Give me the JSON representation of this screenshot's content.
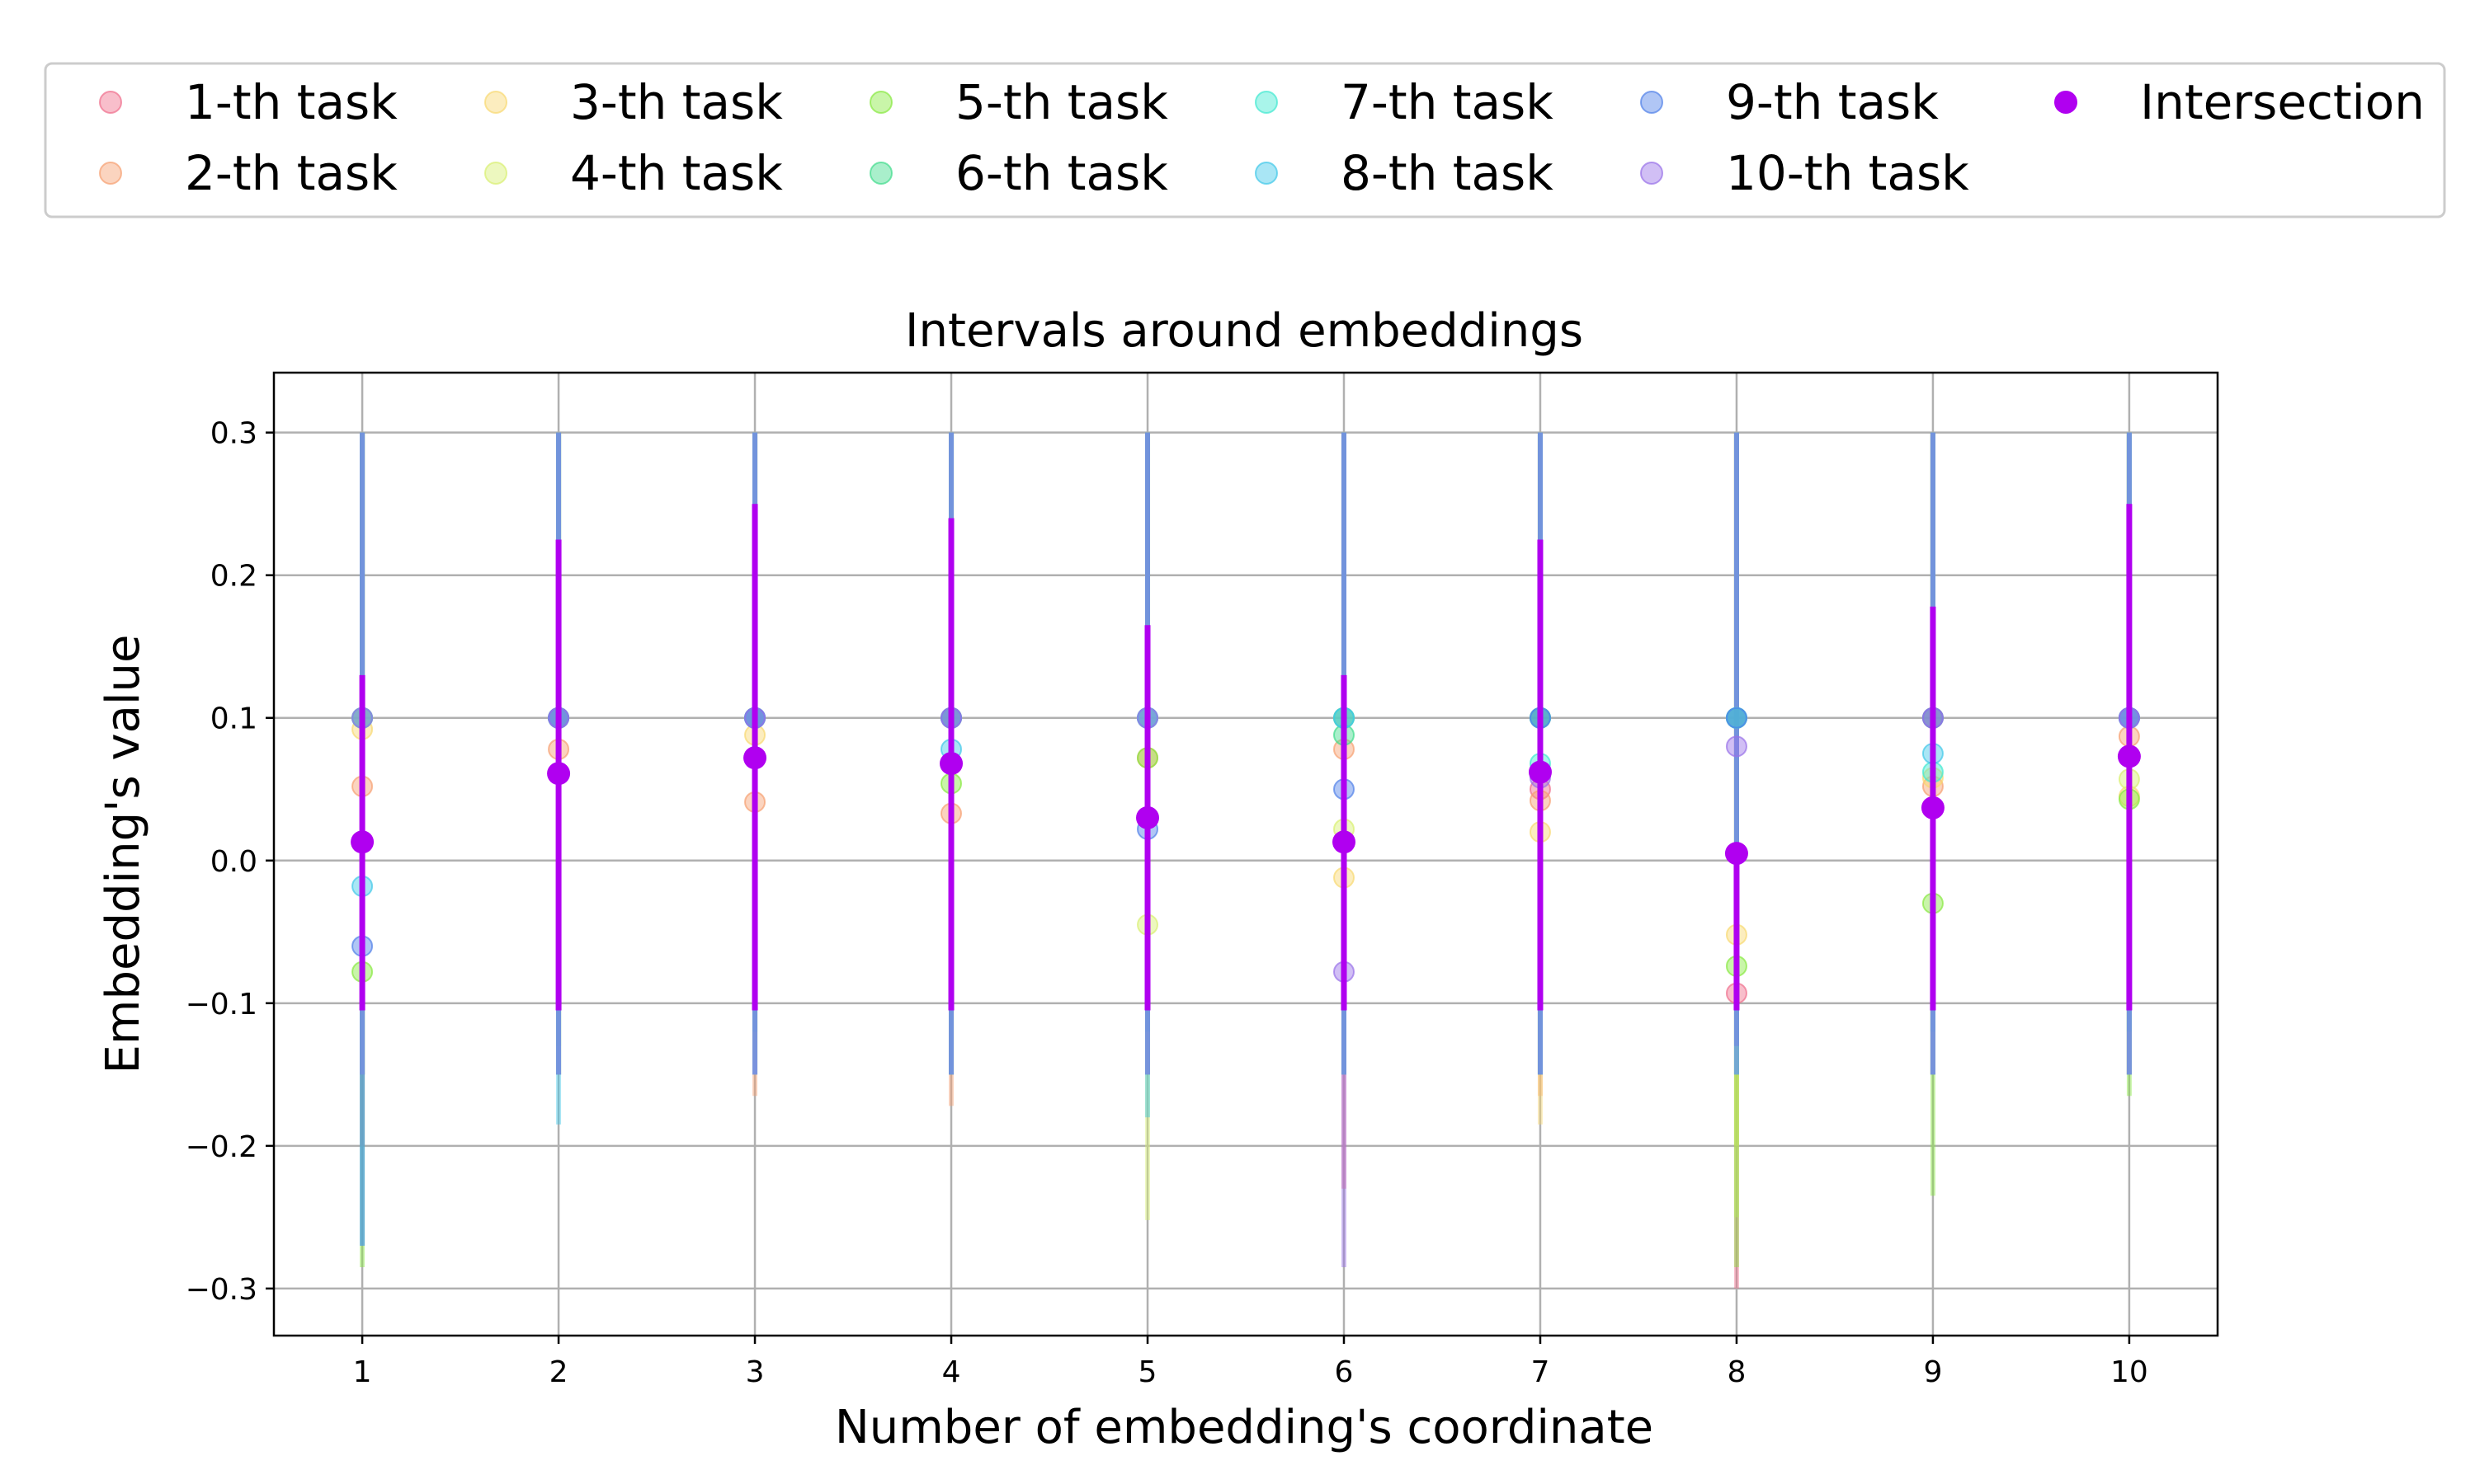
{
  "chart_data": {
    "type": "scatter",
    "title": "Intervals around embeddings",
    "xlabel": "Number of embedding's coordinate",
    "ylabel": "Embedding's value",
    "x": [
      1,
      2,
      3,
      4,
      5,
      6,
      7,
      8,
      9,
      10
    ],
    "x_tick_labels": [
      "1",
      "2",
      "3",
      "4",
      "5",
      "6",
      "7",
      "8",
      "9",
      "10"
    ],
    "xlim": [
      0.55,
      10.45
    ],
    "ylim": [
      -0.333,
      0.342
    ],
    "y_ticks": [
      -0.3,
      -0.2,
      -0.1,
      0.0,
      0.1,
      0.2,
      0.3
    ],
    "y_tick_labels": [
      "−0.3",
      "−0.2",
      "−0.1",
      "0.0",
      "0.1",
      "0.2",
      "0.3"
    ],
    "grid": true,
    "legend_placement": "top, outside plot",
    "legend_columns": 6,
    "series": [
      {
        "name": "1-th task",
        "color": "#f06e8c",
        "y": [
          0.1,
          0.1,
          0.1,
          0.1,
          0.1,
          0.1,
          0.05,
          -0.093,
          0.1,
          0.1
        ],
        "low": [
          -0.2,
          -0.1,
          -0.1,
          -0.1,
          -0.1,
          -0.23,
          -0.15,
          -0.3,
          -0.15,
          -0.15
        ],
        "high": [
          0.3,
          0.3,
          0.3,
          0.3,
          0.3,
          0.3,
          0.3,
          0.3,
          0.3,
          0.3
        ]
      },
      {
        "name": "2-th task",
        "color": "#f6a070",
        "y": [
          0.052,
          0.078,
          0.041,
          0.033,
          0.072,
          0.078,
          0.042,
          0.1,
          0.052,
          0.087
        ],
        "low": [
          -0.15,
          -0.15,
          -0.165,
          -0.172,
          -0.1,
          -0.1,
          -0.165,
          -0.1,
          -0.15,
          -0.15
        ],
        "high": [
          0.3,
          0.3,
          0.3,
          0.3,
          0.3,
          0.3,
          0.3,
          0.3,
          0.3,
          0.3
        ]
      },
      {
        "name": "3-th task",
        "color": "#f8d870",
        "y": [
          0.092,
          0.1,
          0.088,
          0.1,
          0.1,
          -0.012,
          0.02,
          -0.052,
          0.058,
          0.045
        ],
        "low": [
          -0.15,
          -0.15,
          -0.15,
          -0.15,
          -0.15,
          -0.15,
          -0.185,
          -0.2,
          -0.145,
          -0.15
        ],
        "high": [
          0.3,
          0.3,
          0.3,
          0.3,
          0.3,
          0.3,
          0.3,
          0.3,
          0.3,
          0.3
        ]
      },
      {
        "name": "4-th task",
        "color": "#d8f070",
        "y": [
          0.1,
          0.1,
          0.1,
          0.1,
          -0.045,
          0.022,
          0.1,
          0.1,
          0.1,
          0.057
        ],
        "low": [
          -0.15,
          -0.15,
          -0.15,
          -0.15,
          -0.252,
          -0.15,
          -0.15,
          -0.25,
          -0.15,
          -0.15
        ],
        "high": [
          0.3,
          0.3,
          0.3,
          0.3,
          0.3,
          0.3,
          0.3,
          0.3,
          0.3,
          0.3
        ]
      },
      {
        "name": "5-th task",
        "color": "#88e840",
        "y": [
          -0.078,
          0.1,
          0.1,
          0.054,
          0.072,
          0.1,
          0.1,
          -0.074,
          -0.03,
          0.043
        ],
        "low": [
          -0.285,
          -0.13,
          -0.14,
          -0.15,
          -0.15,
          -0.15,
          -0.15,
          -0.285,
          -0.235,
          -0.165
        ],
        "high": [
          0.3,
          0.3,
          0.3,
          0.3,
          0.3,
          0.3,
          0.3,
          0.3,
          0.3,
          0.3
        ]
      },
      {
        "name": "6-th task",
        "color": "#40dc8c",
        "y": [
          0.1,
          0.1,
          0.1,
          0.1,
          0.1,
          0.088,
          0.1,
          0.1,
          0.1,
          0.1
        ],
        "low": [
          -0.15,
          -0.15,
          -0.12,
          -0.15,
          -0.12,
          -0.15,
          -0.15,
          -0.15,
          -0.12,
          -0.12
        ],
        "high": [
          0.3,
          0.3,
          0.3,
          0.3,
          0.3,
          0.3,
          0.3,
          0.3,
          0.3,
          0.3
        ]
      },
      {
        "name": "7-th task",
        "color": "#40e8d0",
        "y": [
          0.1,
          0.1,
          0.1,
          0.1,
          0.1,
          0.1,
          0.068,
          0.1,
          0.062,
          0.1
        ],
        "low": [
          -0.15,
          -0.15,
          -0.15,
          -0.15,
          -0.15,
          -0.15,
          -0.15,
          -0.15,
          -0.15,
          -0.15
        ],
        "high": [
          0.3,
          0.3,
          0.3,
          0.3,
          0.3,
          0.3,
          0.3,
          0.3,
          0.3,
          0.3
        ]
      },
      {
        "name": "8-th task",
        "color": "#40c8e8",
        "y": [
          -0.018,
          0.1,
          0.1,
          0.078,
          0.1,
          0.1,
          0.1,
          0.1,
          0.075,
          0.1
        ],
        "low": [
          -0.27,
          -0.185,
          -0.15,
          -0.15,
          -0.18,
          -0.15,
          -0.15,
          -0.15,
          -0.15,
          -0.15
        ],
        "high": [
          0.3,
          0.3,
          0.3,
          0.3,
          0.3,
          0.3,
          0.3,
          0.3,
          0.3,
          0.3
        ]
      },
      {
        "name": "9-th task",
        "color": "#5080e8",
        "y": [
          -0.06,
          0.1,
          0.1,
          0.1,
          0.022,
          0.05,
          0.1,
          0.1,
          0.1,
          0.1
        ],
        "low": [
          -0.27,
          -0.15,
          -0.15,
          -0.15,
          -0.15,
          -0.15,
          -0.15,
          -0.13,
          -0.15,
          -0.15
        ],
        "high": [
          0.3,
          0.3,
          0.3,
          0.3,
          0.3,
          0.3,
          0.3,
          0.3,
          0.3,
          0.3
        ]
      },
      {
        "name": "10-th task",
        "color": "#9870e8",
        "y": [
          0.1,
          0.1,
          0.1,
          0.1,
          0.1,
          -0.078,
          0.058,
          0.08,
          0.1,
          0.1
        ],
        "low": [
          -0.15,
          -0.15,
          -0.15,
          -0.15,
          -0.15,
          -0.285,
          -0.15,
          -0.15,
          -0.15,
          -0.15
        ],
        "high": [
          0.3,
          0.3,
          0.3,
          0.3,
          0.3,
          0.3,
          0.3,
          0.3,
          0.3,
          0.3
        ]
      }
    ],
    "intersection": {
      "name": "Intersection",
      "color": "#b000f0",
      "y": [
        0.013,
        0.061,
        0.072,
        0.068,
        0.03,
        0.013,
        0.062,
        0.005,
        0.037,
        0.073
      ],
      "low": [
        -0.105,
        -0.105,
        -0.105,
        -0.105,
        -0.105,
        -0.105,
        -0.105,
        -0.105,
        -0.105,
        -0.105
      ],
      "high": [
        0.13,
        0.225,
        0.25,
        0.24,
        0.165,
        0.13,
        0.225,
        0.0,
        0.178,
        0.25
      ]
    }
  }
}
